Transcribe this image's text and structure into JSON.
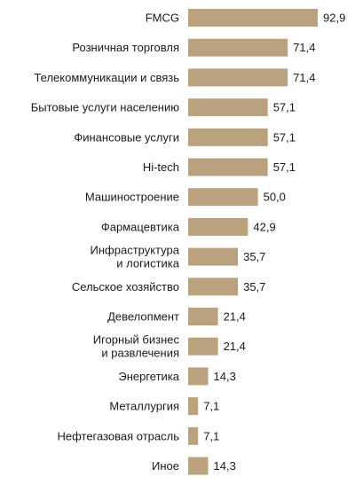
{
  "chart_data": {
    "type": "bar",
    "orientation": "horizontal",
    "bar_color": "#bba27f",
    "categories": [
      [
        "FMCG"
      ],
      [
        "Розничная торговля"
      ],
      [
        "Телекоммуникации и связь"
      ],
      [
        "Бытовые услуги населению"
      ],
      [
        "Финансовые услуги"
      ],
      [
        "Hi-tech"
      ],
      [
        "Машиностроение"
      ],
      [
        "Фармацевтика"
      ],
      [
        "Инфраструктура",
        "и логистика"
      ],
      [
        "Сельское хозяйство"
      ],
      [
        "Девелопмент"
      ],
      [
        "Игорный бизнес",
        "и развлечения"
      ],
      [
        "Энергетика"
      ],
      [
        "Металлургия"
      ],
      [
        "Нефтегазовая отрасль"
      ],
      [
        "Иное"
      ]
    ],
    "values": [
      92.9,
      71.4,
      71.4,
      57.1,
      57.1,
      57.1,
      50.0,
      42.9,
      35.7,
      35.7,
      21.4,
      21.4,
      14.3,
      7.1,
      7.1,
      14.3
    ],
    "value_labels": [
      "92,9",
      "71,4",
      "71,4",
      "57,1",
      "57,1",
      "57,1",
      "50,0",
      "42,9",
      "35,7",
      "35,7",
      "21,4",
      "21,4",
      "14,3",
      "7,1",
      "7,1",
      "14,3"
    ],
    "xlim": [
      0,
      92.9
    ],
    "grid": false,
    "legend": "none"
  }
}
